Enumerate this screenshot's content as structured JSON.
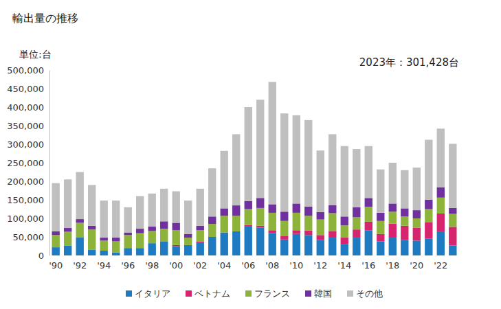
{
  "chart_data": {
    "type": "bar",
    "title": "輸出量の推移",
    "subtitle": "単位:台",
    "annotation": "2023年：301,428台",
    "stacked": true,
    "grid": false,
    "legend": "bottom",
    "categories": [
      "'90",
      null,
      "'92",
      null,
      "'94",
      null,
      "'96",
      null,
      "'98",
      null,
      "'00",
      null,
      "'02",
      null,
      "'04",
      null,
      "'06",
      null,
      "'08",
      null,
      "'10",
      null,
      "'12",
      null,
      "'14",
      null,
      "'16",
      null,
      "'18",
      null,
      "'20",
      null,
      "'22",
      null
    ],
    "ylim": [
      0,
      500000
    ],
    "yticks": [
      0,
      {
        "value": 50000,
        "label": "50,000"
      },
      {
        "value": 100000,
        "label": "100,000"
      },
      {
        "value": 150000,
        "label": "150,000"
      },
      {
        "value": 200000,
        "label": "200,000"
      },
      {
        "value": 250000,
        "label": "250,000"
      },
      {
        "value": 300000,
        "label": "300,000"
      },
      {
        "value": 350000,
        "label": "350,000"
      },
      {
        "value": 400000,
        "label": "400,000"
      },
      {
        "value": 450000,
        "label": "450,000"
      },
      {
        "value": 500000,
        "label": "500,000"
      }
    ],
    "series": [
      {
        "name": "イタリア",
        "color": "#1f7bc1",
        "values": [
          22000,
          27000,
          48000,
          15000,
          13000,
          8000,
          20000,
          20000,
          33000,
          37000,
          25000,
          28000,
          35000,
          50000,
          62000,
          65000,
          78000,
          75000,
          60000,
          43000,
          58000,
          55000,
          42000,
          48000,
          30000,
          48000,
          68000,
          38000,
          48000,
          42000,
          40000,
          45000,
          65000,
          27000
        ]
      },
      {
        "name": "ベトナム",
        "color": "#d6246e",
        "values": [
          0,
          0,
          0,
          0,
          0,
          0,
          0,
          0,
          0,
          0,
          3000,
          0,
          3000,
          0,
          0,
          0,
          4000,
          5000,
          8000,
          10000,
          10000,
          12000,
          13000,
          18000,
          18000,
          22000,
          23000,
          20000,
          38000,
          38000,
          35000,
          45000,
          48000,
          50000
        ]
      },
      {
        "name": "フランス",
        "color": "#8db33a",
        "values": [
          33000,
          37000,
          40000,
          55000,
          27000,
          30000,
          35000,
          40000,
          33000,
          35000,
          40000,
          20000,
          30000,
          35000,
          45000,
          42000,
          43000,
          48000,
          47000,
          40000,
          47000,
          40000,
          42000,
          48000,
          33000,
          33000,
          40000,
          35000,
          32000,
          25000,
          25000,
          35000,
          43000,
          35000
        ]
      },
      {
        "name": "韓国",
        "color": "#7030a0",
        "values": [
          10000,
          10000,
          10000,
          10000,
          8000,
          10000,
          7000,
          12000,
          12000,
          20000,
          20000,
          10000,
          12000,
          20000,
          20000,
          28000,
          22000,
          27000,
          23000,
          25000,
          25000,
          25000,
          20000,
          22000,
          24000,
          27000,
          24000,
          22000,
          22000,
          22000,
          22000,
          25000,
          28000,
          16000
        ]
      },
      {
        "name": "その他",
        "color": "#bfbfbf",
        "values": [
          130000,
          131000,
          127000,
          110000,
          100000,
          100000,
          68000,
          88000,
          89000,
          88000,
          85000,
          90000,
          100000,
          130000,
          155000,
          192000,
          253000,
          265000,
          330000,
          265000,
          238000,
          233000,
          166000,
          191000,
          190000,
          157000,
          140000,
          117000,
          110000,
          103000,
          115000,
          162000,
          158000,
          173000
        ]
      }
    ]
  }
}
